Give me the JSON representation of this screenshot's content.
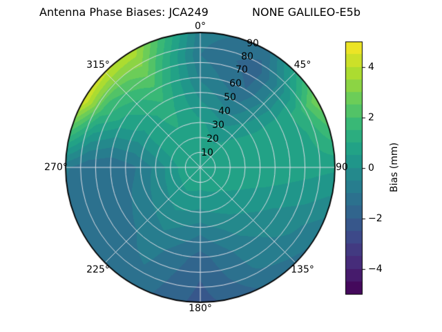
{
  "title": {
    "left": "Antenna Phase Biases: JCA249",
    "right": "NONE GALILEO-E5b"
  },
  "polar": {
    "angle_labels": [
      "0°",
      "45°",
      "90",
      "135°",
      "180°",
      "225°",
      "270°",
      "315°"
    ],
    "radial_labels": [
      "10",
      "20",
      "30",
      "40",
      "50",
      "60",
      "70",
      "80",
      "90"
    ]
  },
  "colorbar": {
    "label": "Bias (mm)",
    "tick_labels": [
      "4",
      "2",
      "0",
      "−2",
      "−4"
    ]
  },
  "chart_data": {
    "type": "heatmap",
    "projection": "polar",
    "title": "Antenna Phase Biases: JCA249         NONE GALILEO-E5b",
    "colorbar_label": "Bias (mm)",
    "colormap": "viridis",
    "value_range": [
      -5,
      5
    ],
    "contour_step": 0.5,
    "colorbar_tick_values": [
      4,
      2,
      0,
      -2,
      -4
    ],
    "angle_ticks_deg": [
      0,
      45,
      90,
      135,
      180,
      225,
      270,
      315
    ],
    "radial_ticks_deg": [
      10,
      20,
      30,
      40,
      50,
      60,
      70,
      80,
      90
    ],
    "azimuth_deg": [
      0,
      30,
      60,
      90,
      120,
      150,
      180,
      210,
      240,
      270,
      300,
      330
    ],
    "zenith_deg": [
      0,
      15,
      30,
      45,
      60,
      75,
      90
    ],
    "bias_mm_rows_zenith_cols_azimuth": [
      [
        0.8,
        0.8,
        0.8,
        0.8,
        0.8,
        0.8,
        0.8,
        0.8,
        0.8,
        0.8,
        0.8,
        0.8
      ],
      [
        0.8,
        0.6,
        0.8,
        0.8,
        0.7,
        0.6,
        0.5,
        0.6,
        0.5,
        0.5,
        0.8,
        0.9
      ],
      [
        0.6,
        0.1,
        0.7,
        0.9,
        0.5,
        0.2,
        -0.1,
        0.1,
        -0.2,
        -0.4,
        0.6,
        1.0
      ],
      [
        0.0,
        -0.8,
        0.6,
        0.9,
        0.2,
        -0.3,
        -1.0,
        -0.4,
        -0.8,
        -1.1,
        0.4,
        1.3
      ],
      [
        -0.6,
        -1.5,
        0.7,
        0.8,
        -0.1,
        -0.7,
        -1.7,
        -0.8,
        -1.2,
        -1.5,
        0.8,
        1.9
      ],
      [
        -1.0,
        -1.8,
        1.2,
        0.7,
        -0.4,
        -0.9,
        -2.0,
        -1.0,
        -1.3,
        -1.4,
        1.8,
        2.8
      ],
      [
        -0.8,
        -1.2,
        3.0,
        0.6,
        -0.9,
        -1.4,
        -2.2,
        -1.2,
        -1.5,
        -0.9,
        4.6,
        3.8
      ]
    ],
    "viridis_stops": [
      "#440154",
      "#482878",
      "#3e4989",
      "#31688e",
      "#26828e",
      "#1f9e89",
      "#35b779",
      "#6ece58",
      "#b5de2b",
      "#fde725"
    ],
    "grid_color": "#dedee6",
    "outline_color": "#000000"
  }
}
